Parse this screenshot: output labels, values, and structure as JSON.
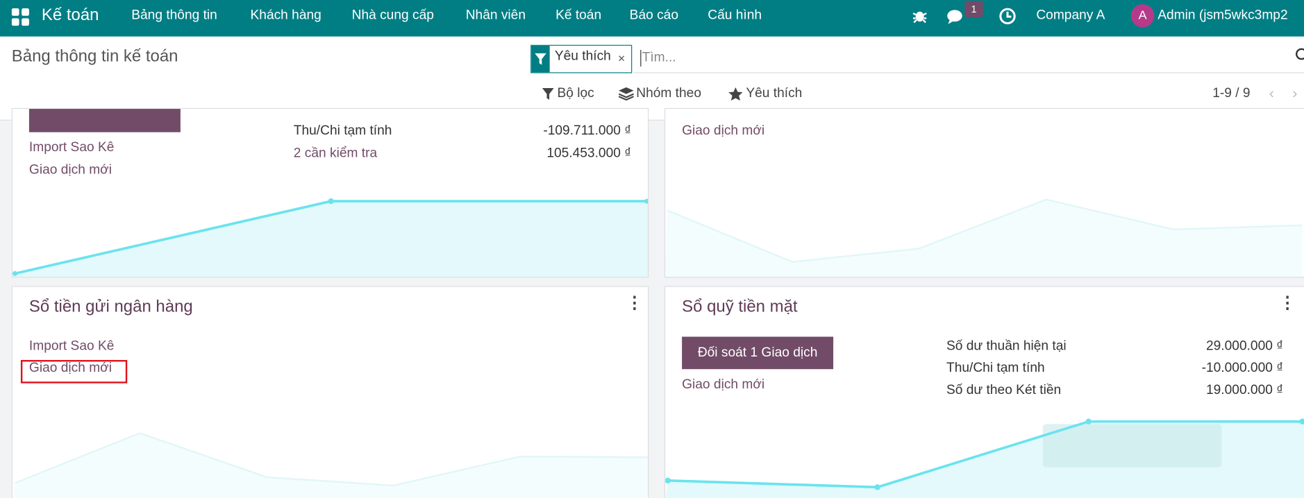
{
  "navbar": {
    "app": "Kế toán",
    "menus": [
      "Bảng thông tin",
      "Khách hàng",
      "Nhà cung cấp",
      "Nhân viên",
      "Kế toán",
      "Báo cáo",
      "Cấu hình"
    ],
    "notification_count": 1,
    "company": "Company A",
    "avatar": "A",
    "user": "Admin (jsm5wkc3mp2"
  },
  "control_panel": {
    "title": "Bảng thông tin kế toán",
    "facet": "Yêu thích",
    "search_placeholder": "Tìm...",
    "filters": "Bộ lọc",
    "group_by": "Nhóm theo",
    "favorites": "Yêu thích",
    "pager": "1-9 / 9"
  },
  "cards": [
    {
      "links": [
        "Import Sao Kê",
        "Giao dịch mới"
      ],
      "stats": [
        {
          "label": "Thu/Chi tạm tính",
          "value": "-109.711.000 ₫"
        },
        {
          "label": "2 cần kiểm tra",
          "value": "105.453.000 ₫"
        }
      ]
    },
    {
      "links": [
        "Giao dịch mới"
      ]
    },
    {
      "title": "Sổ tiền gửi ngân hàng",
      "links": [
        "Import Sao Kê",
        "Giao dịch mới"
      ]
    },
    {
      "title": "Sổ quỹ tiền mặt",
      "button": "Đối soát 1 Giao dịch",
      "links": [
        "Giao dịch mới"
      ],
      "stats": [
        {
          "label": "Số dư thuần hiện tại",
          "value": "29.000.000 ₫"
        },
        {
          "label": "Thu/Chi tạm tính",
          "value": "-10.000.000 ₫"
        },
        {
          "label": "Số dư theo Két tiền",
          "value": "19.000.000 ₫"
        }
      ]
    }
  ]
}
